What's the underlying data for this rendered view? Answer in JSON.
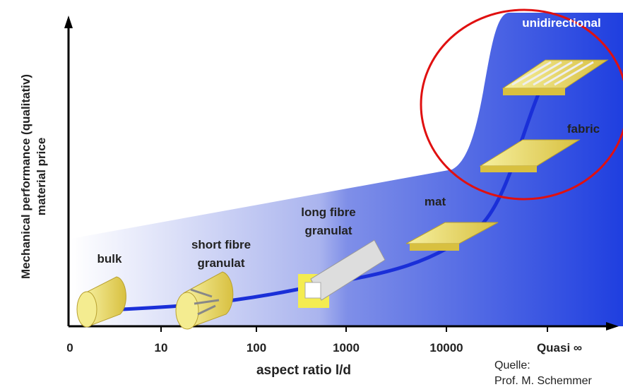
{
  "axes": {
    "y_label_lines": [
      "Mechanical performance (qualitativ)",
      "material price"
    ],
    "x_label": "aspect ratio l/d",
    "x_ticks": [
      "0",
      "10",
      "100",
      "1000",
      "10000",
      "Quasi ∞"
    ]
  },
  "items": [
    {
      "label_lines": [
        "bulk"
      ]
    },
    {
      "label_lines": [
        "short fibre",
        "granulat"
      ]
    },
    {
      "label_lines": [
        "long fibre",
        "granulat"
      ]
    },
    {
      "label_lines": [
        "mat"
      ]
    },
    {
      "label_lines": [
        "fabric"
      ]
    },
    {
      "label_lines": [
        "unidirectional"
      ]
    }
  ],
  "source": [
    "Quelle:",
    "Prof. M. Schemmer"
  ]
}
